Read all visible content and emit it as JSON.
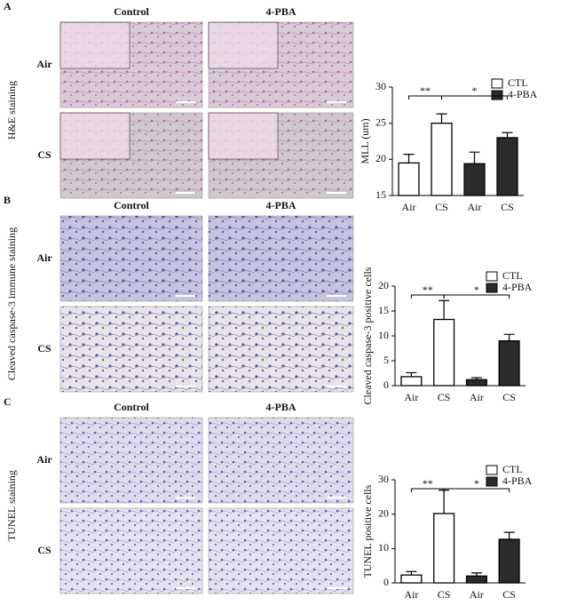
{
  "panels": [
    {
      "label": "A",
      "stain": "H&E staining",
      "columns": [
        "Control",
        "4-PBA"
      ],
      "rows": [
        "Air",
        "CS"
      ]
    },
    {
      "label": "B",
      "stain": "Cleaved caspase-3 immune staining",
      "columns": [
        "Control",
        "4-PBA"
      ],
      "rows": [
        "Air",
        "CS"
      ]
    },
    {
      "label": "C",
      "stain": "TUNEL staining",
      "columns": [
        "Control",
        "4-PBA"
      ],
      "rows": [
        "Air",
        "CS"
      ]
    }
  ],
  "chart_data": [
    {
      "type": "bar",
      "ylabel": "MLL (um)",
      "categories": [
        "Air",
        "CS",
        "Air",
        "CS"
      ],
      "series": [
        {
          "name": "CTL",
          "color": "#ffffff",
          "values": [
            19.5,
            25,
            null,
            null
          ],
          "errors": [
            1.2,
            1.3,
            null,
            null
          ]
        },
        {
          "name": "4-PBA",
          "color": "#2b2b2b",
          "values": [
            null,
            null,
            19.4,
            23
          ],
          "errors": [
            null,
            null,
            1.6,
            0.7
          ]
        }
      ],
      "ylim": [
        15,
        30
      ],
      "yticks": [
        15,
        20,
        25,
        30
      ],
      "annotations": [
        "**",
        "*"
      ]
    },
    {
      "type": "bar",
      "ylabel": "Cleaved caspase-3 positive cells",
      "categories": [
        "Air",
        "CS",
        "Air",
        "CS"
      ],
      "series": [
        {
          "name": "CTL",
          "color": "#ffffff",
          "values": [
            1.8,
            13.3,
            null,
            null
          ],
          "errors": [
            0.8,
            3.8,
            null,
            null
          ]
        },
        {
          "name": "4-PBA",
          "color": "#2b2b2b",
          "values": [
            null,
            null,
            1.2,
            9
          ],
          "errors": [
            null,
            null,
            0.4,
            1.3
          ]
        }
      ],
      "ylim": [
        0,
        20
      ],
      "yticks": [
        0,
        5,
        10,
        15,
        20
      ],
      "annotations": [
        "**",
        "*"
      ]
    },
    {
      "type": "bar",
      "ylabel": "TUNEL positive cells",
      "categories": [
        "Air",
        "CS",
        "Air",
        "CS"
      ],
      "series": [
        {
          "name": "CTL",
          "color": "#ffffff",
          "values": [
            2.3,
            20.2,
            null,
            null
          ],
          "errors": [
            1,
            6.8,
            null,
            null
          ]
        },
        {
          "name": "4-PBA",
          "color": "#2b2b2b",
          "values": [
            null,
            null,
            2,
            12.7
          ],
          "errors": [
            null,
            null,
            0.9,
            2
          ]
        }
      ],
      "ylim": [
        0,
        30
      ],
      "yticks": [
        0,
        10,
        20,
        30
      ],
      "annotations": [
        "**",
        "*"
      ]
    }
  ]
}
